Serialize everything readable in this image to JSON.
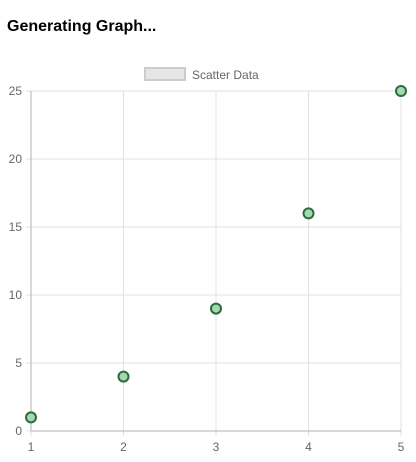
{
  "page": {
    "heading": "Generating Graph..."
  },
  "chart_data": {
    "type": "scatter",
    "title": "",
    "xlabel": "",
    "ylabel": "",
    "xlim": [
      1,
      5
    ],
    "ylim": [
      0,
      25
    ],
    "x_ticks": [
      1,
      2,
      3,
      4,
      5
    ],
    "y_ticks": [
      0,
      5,
      10,
      15,
      20,
      25
    ],
    "grid": true,
    "legend_position": "top-center",
    "series": [
      {
        "name": "Scatter Data",
        "x": [
          1,
          2,
          3,
          4,
          5
        ],
        "y": [
          1,
          4,
          9,
          16,
          25
        ],
        "point_fill": "#a3d9b1",
        "point_stroke": "#2e6b3a"
      }
    ],
    "colors": {
      "grid": "#e1e1e1",
      "axis": "#b0b0b0",
      "tick_text": "#666666",
      "legend_box_fill": "#e6e6e6",
      "legend_box_stroke": "#cccccc"
    }
  }
}
